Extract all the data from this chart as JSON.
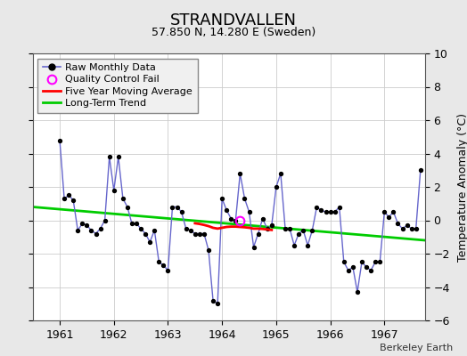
{
  "title": "STRANDVALLEN",
  "subtitle": "57.850 N, 14.280 E (Sweden)",
  "ylabel": "Temperature Anomaly (°C)",
  "credit": "Berkeley Earth",
  "xlim": [
    1960.5,
    1967.75
  ],
  "ylim": [
    -6,
    10
  ],
  "yticks": [
    -6,
    -4,
    -2,
    0,
    2,
    4,
    6,
    8,
    10
  ],
  "bg_color": "#e8e8e8",
  "plot_bg_color": "#ffffff",
  "raw_color": "#6666cc",
  "raw_marker_color": "#000000",
  "ma_color": "#ff0000",
  "trend_color": "#00cc00",
  "qc_color": "#ff00ff",
  "monthly_data": [
    [
      1961.0,
      4.8
    ],
    [
      1961.083,
      1.3
    ],
    [
      1961.167,
      1.5
    ],
    [
      1961.25,
      1.2
    ],
    [
      1961.333,
      -0.6
    ],
    [
      1961.417,
      -0.2
    ],
    [
      1961.5,
      -0.3
    ],
    [
      1961.583,
      -0.6
    ],
    [
      1961.667,
      -0.8
    ],
    [
      1961.75,
      -0.5
    ],
    [
      1961.833,
      0.0
    ],
    [
      1961.917,
      3.8
    ],
    [
      1962.0,
      1.8
    ],
    [
      1962.083,
      3.8
    ],
    [
      1962.167,
      1.3
    ],
    [
      1962.25,
      0.8
    ],
    [
      1962.333,
      -0.2
    ],
    [
      1962.417,
      -0.2
    ],
    [
      1962.5,
      -0.5
    ],
    [
      1962.583,
      -0.8
    ],
    [
      1962.667,
      -1.3
    ],
    [
      1962.75,
      -0.6
    ],
    [
      1962.833,
      -2.5
    ],
    [
      1962.917,
      -2.7
    ],
    [
      1963.0,
      -3.0
    ],
    [
      1963.083,
      0.8
    ],
    [
      1963.167,
      0.8
    ],
    [
      1963.25,
      0.5
    ],
    [
      1963.333,
      -0.5
    ],
    [
      1963.417,
      -0.6
    ],
    [
      1963.5,
      -0.8
    ],
    [
      1963.583,
      -0.8
    ],
    [
      1963.667,
      -0.8
    ],
    [
      1963.75,
      -1.8
    ],
    [
      1963.833,
      -4.8
    ],
    [
      1963.917,
      -5.0
    ],
    [
      1964.0,
      1.3
    ],
    [
      1964.083,
      0.6
    ],
    [
      1964.167,
      0.1
    ],
    [
      1964.25,
      0.0
    ],
    [
      1964.333,
      2.8
    ],
    [
      1964.417,
      1.3
    ],
    [
      1964.5,
      0.5
    ],
    [
      1964.583,
      -1.6
    ],
    [
      1964.667,
      -0.8
    ],
    [
      1964.75,
      0.1
    ],
    [
      1964.833,
      -0.5
    ],
    [
      1964.917,
      -0.3
    ],
    [
      1965.0,
      2.0
    ],
    [
      1965.083,
      2.8
    ],
    [
      1965.167,
      -0.5
    ],
    [
      1965.25,
      -0.5
    ],
    [
      1965.333,
      -1.5
    ],
    [
      1965.417,
      -0.8
    ],
    [
      1965.5,
      -0.6
    ],
    [
      1965.583,
      -1.5
    ],
    [
      1965.667,
      -0.6
    ],
    [
      1965.75,
      0.8
    ],
    [
      1965.833,
      0.6
    ],
    [
      1965.917,
      0.5
    ],
    [
      1966.0,
      0.5
    ],
    [
      1966.083,
      0.5
    ],
    [
      1966.167,
      0.8
    ],
    [
      1966.25,
      -2.5
    ],
    [
      1966.333,
      -3.0
    ],
    [
      1966.417,
      -2.8
    ],
    [
      1966.5,
      -4.3
    ],
    [
      1966.583,
      -2.5
    ],
    [
      1966.667,
      -2.8
    ],
    [
      1966.75,
      -3.0
    ],
    [
      1966.833,
      -2.5
    ],
    [
      1966.917,
      -2.5
    ],
    [
      1967.0,
      0.5
    ],
    [
      1967.083,
      0.2
    ],
    [
      1967.167,
      0.5
    ],
    [
      1967.25,
      -0.2
    ],
    [
      1967.333,
      -0.5
    ],
    [
      1967.417,
      -0.3
    ],
    [
      1967.5,
      -0.5
    ],
    [
      1967.583,
      -0.5
    ],
    [
      1967.667,
      3.0
    ]
  ],
  "moving_avg": [
    [
      1963.5,
      -0.18
    ],
    [
      1963.583,
      -0.22
    ],
    [
      1963.667,
      -0.28
    ],
    [
      1963.75,
      -0.35
    ],
    [
      1963.833,
      -0.45
    ],
    [
      1963.917,
      -0.5
    ],
    [
      1964.0,
      -0.45
    ],
    [
      1964.083,
      -0.4
    ],
    [
      1964.167,
      -0.38
    ],
    [
      1964.25,
      -0.38
    ],
    [
      1964.333,
      -0.4
    ],
    [
      1964.417,
      -0.42
    ],
    [
      1964.5,
      -0.45
    ],
    [
      1964.583,
      -0.5
    ],
    [
      1964.667,
      -0.5
    ],
    [
      1964.75,
      -0.52
    ],
    [
      1964.833,
      -0.55
    ],
    [
      1964.917,
      -0.58
    ]
  ],
  "trend_x": [
    1960.5,
    1967.75
  ],
  "trend_y": [
    0.8,
    -1.2
  ],
  "qc_points": [
    [
      1964.33,
      0.0
    ]
  ],
  "xticks": [
    1961,
    1962,
    1963,
    1964,
    1965,
    1966,
    1967
  ],
  "xticklabels": [
    "1961",
    "1962",
    "1963",
    "1964",
    "1965",
    "1966",
    "1967"
  ],
  "title_fontsize": 13,
  "subtitle_fontsize": 9,
  "tick_fontsize": 9,
  "legend_fontsize": 8,
  "credit_fontsize": 8
}
